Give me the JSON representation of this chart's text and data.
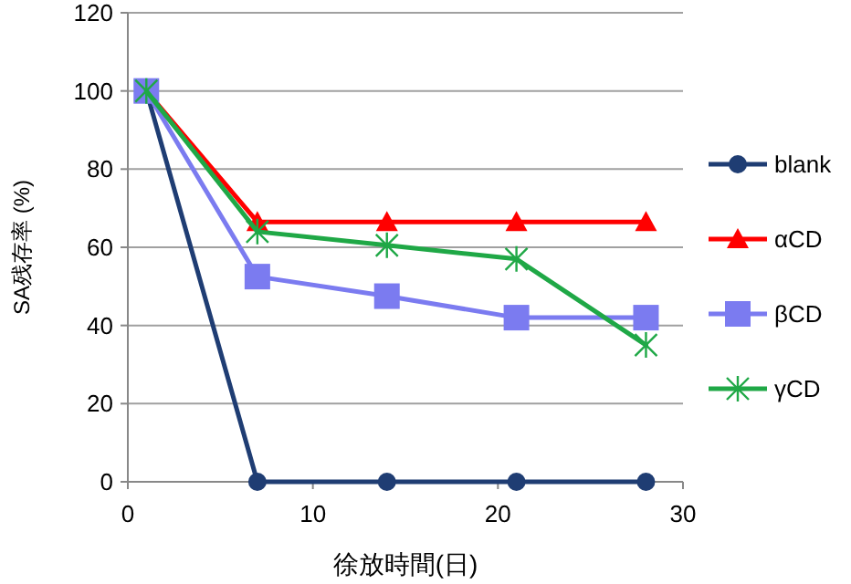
{
  "chart_data": {
    "type": "line",
    "xlabel": "徐放時間(日)",
    "ylabel": "SA残存率 (%)",
    "x": [
      1,
      7,
      14,
      21,
      28
    ],
    "xlim": [
      0,
      30
    ],
    "xticks": [
      0,
      10,
      20,
      30
    ],
    "ylim": [
      0,
      120
    ],
    "yticks": [
      0,
      20,
      40,
      60,
      80,
      100,
      120
    ],
    "grid": "y",
    "legend": "right",
    "series": [
      {
        "name": "blank",
        "color": "#1f3d73",
        "marker": "circle",
        "values": [
          100,
          0,
          0,
          0,
          0
        ]
      },
      {
        "name": "αCD",
        "color": "#ff0000",
        "marker": "triangle",
        "values": [
          100,
          66.5,
          66.5,
          66.5,
          66.5
        ]
      },
      {
        "name": "βCD",
        "color": "#7b7bf0",
        "marker": "square",
        "values": [
          100,
          52.5,
          47.5,
          42,
          42
        ]
      },
      {
        "name": "γCD",
        "color": "#1fa846",
        "marker": "cross",
        "values": [
          100,
          64,
          60.5,
          57,
          35
        ]
      }
    ]
  }
}
